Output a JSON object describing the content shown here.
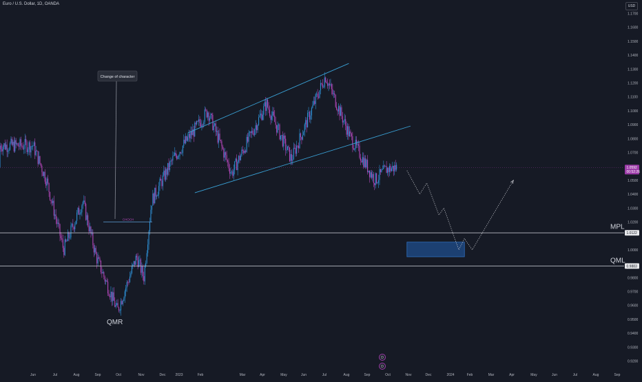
{
  "header": {
    "symbol_title": "Euro / U.S. Dollar, 1D, OANDA",
    "currency": "USD"
  },
  "price_axis": {
    "ticks": [
      "1.1700",
      "1.1600",
      "1.1500",
      "1.1400",
      "1.1300",
      "1.1200",
      "1.1100",
      "1.1000",
      "1.0900",
      "1.0800",
      "1.0700",
      "1.0500",
      "1.0400",
      "1.0300",
      "1.0200",
      "1.0000",
      "0.9800",
      "0.9700",
      "0.9600",
      "0.9500",
      "0.9400",
      "0.9300",
      "0.9200"
    ],
    "current_price": "1.0592",
    "countdown": "00:52:26",
    "mpl_price": "1.0122",
    "qml_price": "0.9883"
  },
  "time_axis": {
    "ticks": [
      "Jun",
      "Jul",
      "Aug",
      "Sep",
      "Oct",
      "Nov",
      "Dec",
      "2023",
      "Feb",
      "Mar",
      "Apr",
      "May",
      "Jun",
      "Jul",
      "Aug",
      "Sep",
      "Oct",
      "Nov",
      "Dec",
      "2024",
      "Feb",
      "Mar",
      "Apr",
      "May",
      "Jun",
      "Jul",
      "Aug",
      "Sep",
      "Oct"
    ]
  },
  "annotations": {
    "change_of_character": "Change of character",
    "choch": "CHOCH",
    "mpl": "MPL",
    "qml": "QML",
    "qmr": "QMR"
  },
  "event_icons": [
    {
      "name": "dividend-icon",
      "glyph": "D"
    },
    {
      "name": "dividend-icon",
      "glyph": "D"
    }
  ],
  "colors": {
    "background": "#161a25",
    "bull_candle": "#2d8fd5",
    "bear_candle": "#b347b9",
    "channel": "#3aa3d8",
    "level_line": "#d1d4dc",
    "zone_fill": "#1f4e8c",
    "zone_border": "#2f6fc0",
    "projection": "#c9cbd1",
    "last_price_badge": "#9c3ba8"
  },
  "chart_data": {
    "type": "candlestick",
    "symbol": "Euro / U.S. Dollar",
    "timeframe": "1D",
    "ylim": [
      0.92,
      1.175
    ],
    "price_path": [
      {
        "date": "2022-06-01",
        "close": 1.075
      },
      {
        "date": "2022-06-20",
        "close": 1.05
      },
      {
        "date": "2022-07-14",
        "close": 1.0
      },
      {
        "date": "2022-08-10",
        "close": 1.035
      },
      {
        "date": "2022-08-29",
        "close": 0.995
      },
      {
        "date": "2022-09-28",
        "close": 0.956
      },
      {
        "date": "2022-10-25",
        "close": 0.995
      },
      {
        "date": "2022-11-04",
        "close": 0.98
      },
      {
        "date": "2022-11-15",
        "close": 1.035
      },
      {
        "date": "2022-12-15",
        "close": 1.065
      },
      {
        "date": "2023-01-20",
        "close": 1.09
      },
      {
        "date": "2023-02-02",
        "close": 1.1
      },
      {
        "date": "2023-03-08",
        "close": 1.055
      },
      {
        "date": "2023-04-26",
        "close": 1.105
      },
      {
        "date": "2023-05-31",
        "close": 1.065
      },
      {
        "date": "2023-07-18",
        "close": 1.125
      },
      {
        "date": "2023-08-23",
        "close": 1.08
      },
      {
        "date": "2023-09-26",
        "close": 1.05
      },
      {
        "date": "2023-10-12",
        "close": 1.058
      },
      {
        "date": "2023-10-27",
        "close": 1.0592
      }
    ],
    "levels": {
      "MPL": 1.0122,
      "QML": 0.9883,
      "CHOCH": 1.02
    },
    "channel_upper": [
      {
        "date": "2023-01-05",
        "price": 1.084
      },
      {
        "date": "2023-08-20",
        "price": 1.134
      }
    ],
    "channel_lower": [
      {
        "date": "2023-01-15",
        "price": 1.041
      },
      {
        "date": "2023-11-15",
        "price": 1.089
      }
    ],
    "target_zone": {
      "from": "2023-11-10",
      "to": "2024-01-30",
      "low": 0.995,
      "high": 1.0055
    },
    "projection_path": [
      {
        "date": "2023-11-10",
        "price": 1.057
      },
      {
        "date": "2023-11-28",
        "price": 1.04
      },
      {
        "date": "2023-12-08",
        "price": 1.048
      },
      {
        "date": "2023-12-25",
        "price": 1.025
      },
      {
        "date": "2024-01-01",
        "price": 1.03
      },
      {
        "date": "2024-01-22",
        "price": 1.0
      },
      {
        "date": "2024-01-30",
        "price": 1.008
      },
      {
        "date": "2024-02-10",
        "price": 1.0
      },
      {
        "date": "2024-04-08",
        "price": 1.05
      }
    ]
  }
}
